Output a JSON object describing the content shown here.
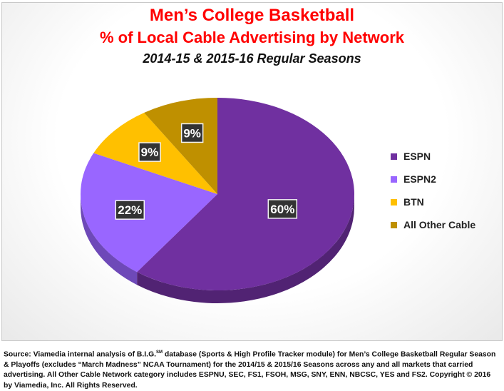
{
  "chart_data": {
    "type": "pie",
    "title": "Men’s College Basketball",
    "subtitle": "% of Local Cable Advertising by Network",
    "subtitle2": "2014-15 & 2015-16 Regular Seasons",
    "slices": [
      {
        "name": "ESPN",
        "value": 60,
        "label": "60%",
        "color": "#7030a0"
      },
      {
        "name": "ESPN2",
        "value": 22,
        "label": "22%",
        "color": "#9966ff"
      },
      {
        "name": "BTN",
        "value": 9,
        "label": "9%",
        "color": "#ffc000"
      },
      {
        "name": "All Other Cable",
        "value": 9,
        "label": "9%",
        "color": "#bf9000"
      }
    ],
    "legend_position": "right"
  },
  "source": {
    "prefix": "Source: Viamedia internal analysis of B.I.G.",
    "superscript": "SM",
    "text": " database (Sports & High Profile Tracker module) for Men’s College Basketball Regular Season & Playoffs (excludes “March Madness” NCAA Tournament) for the 2014/15 & 2015/16 Seasons across any and all markets that carried advertising. All Other Cable Network category includes ESPNU, SEC, FS1, FSOH, MSG, SNY, ENN, NBCSC, YES and FS2. Copyright © 2016 by Viamedia, Inc. All Rights Reserved."
  }
}
